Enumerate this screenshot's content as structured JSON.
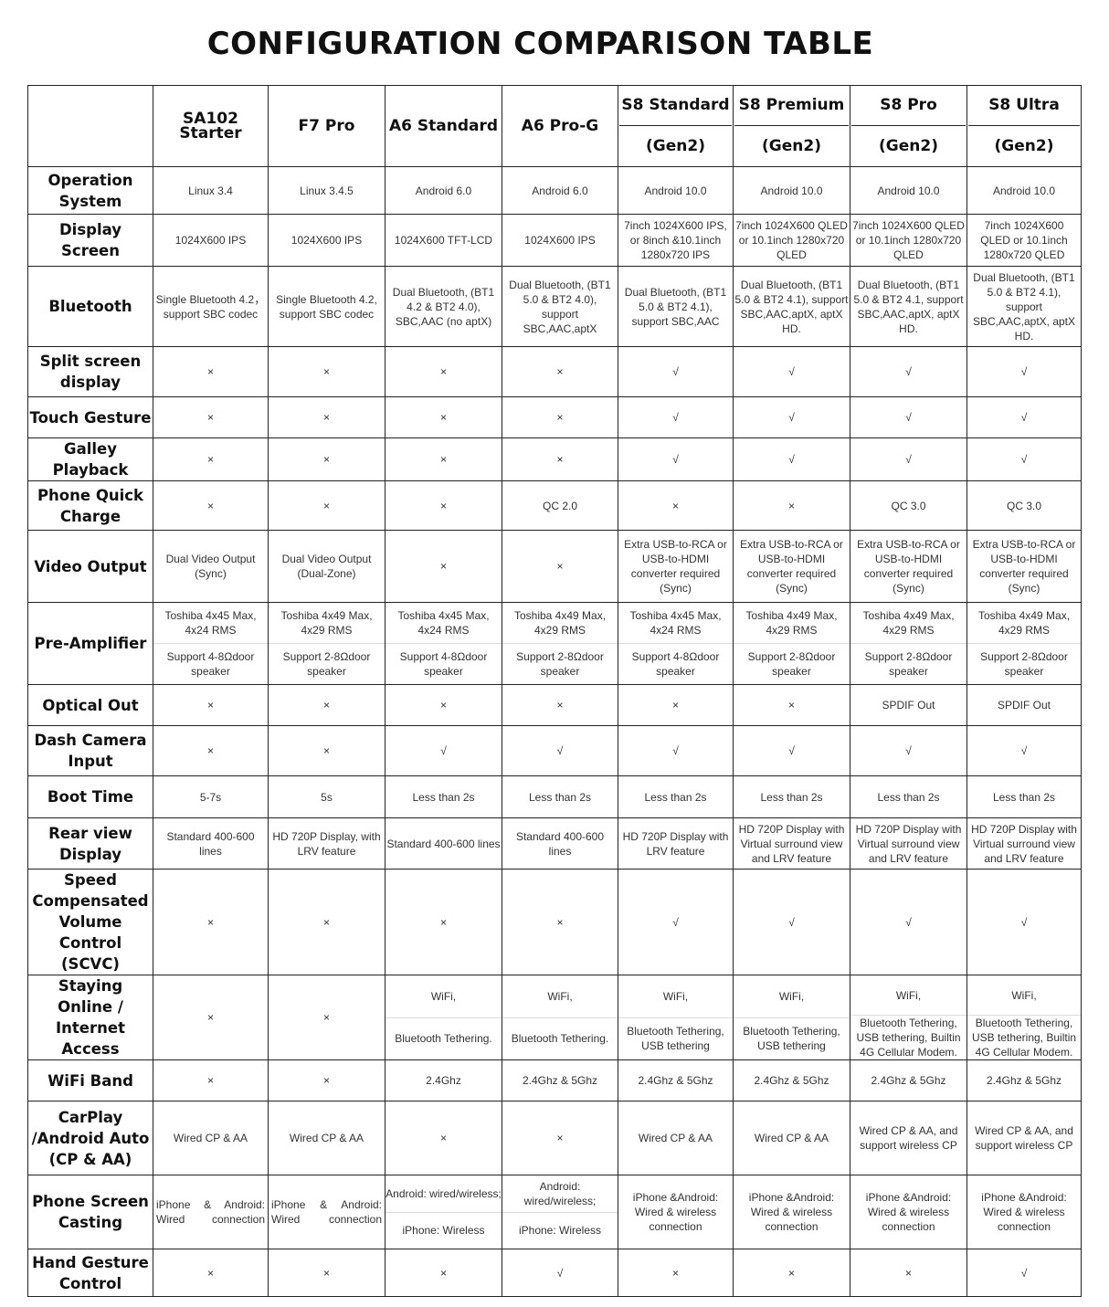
{
  "title": "CONFIGURATION COMPARISON TABLE",
  "columns": [
    {
      "name": "SA102 Starter"
    },
    {
      "name": "F7 Pro"
    },
    {
      "name": "A6 Standard"
    },
    {
      "name": "A6 Pro-G"
    },
    {
      "name": "S8 Standard",
      "sub": "(Gen2)"
    },
    {
      "name": "S8 Premium",
      "sub": "(Gen2)"
    },
    {
      "name": "S8 Pro",
      "sub": "(Gen2)"
    },
    {
      "name": "S8 Ultra",
      "sub": "(Gen2)"
    }
  ],
  "symbols": {
    "no": "×",
    "yes": "√"
  },
  "rows": [
    {
      "label": "Operation System",
      "h": 52,
      "cells": [
        "Linux 3.4",
        "Linux 3.4.5",
        "Android 6.0",
        "Android 6.0",
        "Android 10.0",
        "Android 10.0",
        "Android 10.0",
        "Android 10.0"
      ]
    },
    {
      "label": "Display Screen",
      "h": 57,
      "cells": [
        "1024X600 IPS",
        "1024X600 IPS",
        "1024X600 TFT-LCD",
        "1024X600 IPS",
        "7inch 1024X600 IPS, or 8inch &10.1inch 1280x720 IPS",
        "7inch 1024X600 QLED or 10.1inch 1280x720 QLED",
        "7inch 1024X600 QLED or 10.1inch 1280x720 QLED",
        "7inch 1024X600 QLED or 10.1inch 1280x720 QLED"
      ]
    },
    {
      "label": "Bluetooth",
      "h": 88,
      "cells": [
        "Single Bluetooth 4.2， support SBC codec",
        "Single Bluetooth 4.2, support SBC codec",
        "Dual Bluetooth, (BT1 4.2 & BT2 4.0), SBC,AAC (no aptX)",
        "Dual Bluetooth, (BT1 5.0 & BT2 4.0), support SBC,AAC,aptX",
        "Dual Bluetooth, (BT1 5.0 & BT2 4.1), support SBC,AAC",
        "Dual Bluetooth, (BT1 5.0 & BT2 4.1), support SBC,AAC,aptX, aptX HD.",
        "Dual Bluetooth, (BT1 5.0 & BT2 4.1, support SBC,AAC,aptX, aptX HD.",
        "Dual Bluetooth, (BT1 5.0 & BT2 4.1), support SBC,AAC,aptX, aptX HD."
      ]
    },
    {
      "label": "Split screen display",
      "h": 55,
      "cells": [
        "×",
        "×",
        "×",
        "×",
        "√",
        "√",
        "√",
        "√"
      ]
    },
    {
      "label": "Touch Gesture",
      "h": 45,
      "cells": [
        "×",
        "×",
        "×",
        "×",
        "√",
        "√",
        "√",
        "√"
      ]
    },
    {
      "label": "Galley Playback",
      "h": 45,
      "cells": [
        "×",
        "×",
        "×",
        "×",
        "√",
        "√",
        "√",
        "√"
      ]
    },
    {
      "label": "Phone Quick Charge",
      "h": 54,
      "cells": [
        "×",
        "×",
        "×",
        "QC 2.0",
        "×",
        "×",
        "QC 3.0",
        "QC 3.0"
      ]
    },
    {
      "label": "Video Output",
      "h": 79,
      "cells": [
        "Dual Video Output (Sync)",
        "Dual Video Output (Dual-Zone)",
        "×",
        "×",
        "Extra USB-to-RCA or USB-to-HDMI converter required (Sync)",
        "Extra USB-to-RCA or USB-to-HDMI converter required (Sync)",
        "Extra USB-to-RCA or USB-to-HDMI converter required (Sync)",
        "Extra USB-to-RCA or USB-to-HDMI converter required (Sync)"
      ]
    },
    {
      "label": "Pre-Amplifier",
      "h": 89,
      "cells": [
        [
          "Toshiba 4x45 Max, 4x24 RMS",
          "Support 4-8Ωdoor speaker"
        ],
        [
          "Toshiba 4x49 Max, 4x29 RMS",
          "Support 2-8Ωdoor speaker"
        ],
        [
          "Toshiba 4x45 Max, 4x24 RMS",
          "Support 4-8Ωdoor speaker"
        ],
        [
          "Toshiba 4x49 Max, 4x29 RMS",
          "Support 2-8Ωdoor speaker"
        ],
        [
          "Toshiba 4x45 Max, 4x24 RMS",
          "Support 4-8Ωdoor speaker"
        ],
        [
          "Toshiba 4x49 Max, 4x29 RMS",
          "Support 2-8Ωdoor speaker"
        ],
        [
          "Toshiba 4x49 Max, 4x29 RMS",
          "Support 2-8Ωdoor speaker"
        ],
        [
          "Toshiba 4x49 Max, 4x29 RMS",
          "Support 2-8Ωdoor speaker"
        ]
      ]
    },
    {
      "label": "Optical Out",
      "h": 45,
      "cells": [
        "×",
        "×",
        "×",
        "×",
        "×",
        "×",
        "SPDIF Out",
        "SPDIF Out"
      ]
    },
    {
      "label": "Dash Camera Input",
      "h": 55,
      "cells": [
        "×",
        "×",
        "√",
        "√",
        "√",
        "√",
        "√",
        "√"
      ]
    },
    {
      "label": "Boot Time",
      "h": 46,
      "cells": [
        "5-7s",
        "5s",
        "Less than 2s",
        "Less than 2s",
        "Less than 2s",
        "Less than 2s",
        "Less than 2s",
        "Less than 2s"
      ]
    },
    {
      "label": "Rear view Display",
      "h": 56,
      "cells": [
        "Standard 400-600 lines",
        "HD 720P Display, with LRV feature",
        "Standard 400-600 lines",
        "Standard 400-600 lines",
        "HD 720P Display with LRV feature",
        "HD 720P Display with Virtual surround view and LRV feature",
        "HD 720P Display with Virtual surround view and LRV feature",
        "HD 720P Display with Virtual surround view and LRV feature"
      ]
    },
    {
      "label": "Speed Compensated Volume Control (SCVC)",
      "h": 102,
      "cells": [
        "×",
        "×",
        "×",
        "×",
        "√",
        "√",
        "√",
        "√"
      ]
    },
    {
      "label": "Staying Online / Internet Access",
      "h": 91,
      "cells": [
        "×",
        "×",
        [
          "WiFi,",
          "Bluetooth Tethering."
        ],
        [
          "WiFi,",
          "Bluetooth Tethering."
        ],
        [
          "WiFi,",
          "Bluetooth Tethering, USB tethering"
        ],
        [
          "WiFi,",
          "Bluetooth Tethering, USB tethering"
        ],
        [
          "WiFi,",
          "Bluetooth Tethering, USB tethering, Builtin 4G Cellular Modem."
        ],
        [
          "WiFi,",
          "Bluetooth Tethering, USB tethering, Builtin 4G Cellular Modem."
        ]
      ]
    },
    {
      "label": "WiFi Band",
      "h": 45,
      "cells": [
        "×",
        "×",
        "2.4Ghz",
        "2.4Ghz & 5Ghz",
        "2.4Ghz & 5Ghz",
        "2.4Ghz & 5Ghz",
        "2.4Ghz & 5Ghz",
        "2.4Ghz & 5Ghz"
      ]
    },
    {
      "label": "CarPlay /Android Auto (CP & AA)",
      "h": 81,
      "cells": [
        "Wired CP & AA",
        "Wired CP & AA",
        "×",
        "×",
        "Wired CP & AA",
        "Wired CP & AA",
        "Wired CP & AA, and support wireless CP",
        "Wired CP & AA, and support wireless CP"
      ]
    },
    {
      "label": "Phone Screen Casting",
      "h": 80,
      "cells": [
        "iPhone & Android: Wired connection",
        "iPhone & Android: Wired connection",
        [
          "Android: wired/wireless;",
          "iPhone: Wireless"
        ],
        [
          "Android: wired/wireless;",
          "iPhone: Wireless"
        ],
        "iPhone &Android: Wired & wireless connection",
        "iPhone &Android: Wired & wireless connection",
        "iPhone &Android: Wired & wireless connection",
        "iPhone &Android: Wired & wireless connection"
      ]
    },
    {
      "label": "Hand Gesture Control",
      "h": 52,
      "cells": [
        "×",
        "×",
        "×",
        "√",
        "×",
        "×",
        "×",
        "√"
      ]
    }
  ]
}
